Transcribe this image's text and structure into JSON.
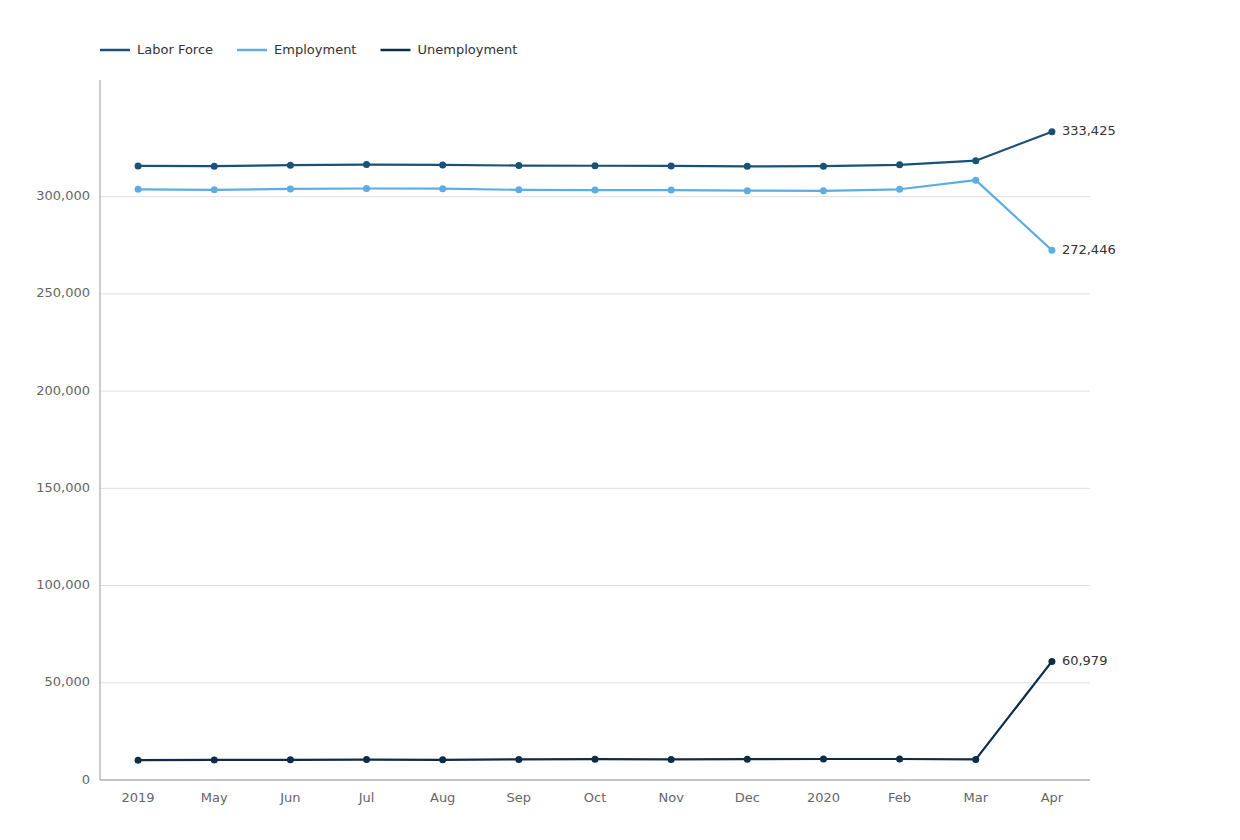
{
  "chart_data": {
    "type": "line",
    "categories": [
      "2019",
      "May",
      "Jun",
      "Jul",
      "Aug",
      "Sep",
      "Oct",
      "Nov",
      "Dec",
      "2020",
      "Feb",
      "Mar",
      "Apr"
    ],
    "series": [
      {
        "name": "Labor Force",
        "color": "#1a5276",
        "values": [
          315800,
          315700,
          316200,
          316500,
          316300,
          316000,
          315900,
          315800,
          315600,
          315700,
          316400,
          318500,
          333425
        ]
      },
      {
        "name": "Employment",
        "color": "#5dade2",
        "values": [
          303800,
          303500,
          304000,
          304200,
          304100,
          303500,
          303400,
          303400,
          303100,
          303000,
          303800,
          308500,
          272446
        ]
      },
      {
        "name": "Unemployment",
        "color": "#0d2d47",
        "values": [
          10200,
          10300,
          10400,
          10500,
          10400,
          10600,
          10700,
          10600,
          10700,
          10800,
          10800,
          10600,
          60979
        ]
      }
    ],
    "annotations": [
      {
        "text": "333,425",
        "x": "Apr",
        "y": 333425
      },
      {
        "text": "272,446",
        "x": "Apr",
        "y": 272446
      },
      {
        "text": "60,979",
        "x": "Apr",
        "y": 60979
      }
    ],
    "ylim": [
      0,
      360000
    ],
    "yticks": [
      0,
      {
        "value": 50000,
        "label": "50,000"
      },
      {
        "value": 100000,
        "label": "100,000"
      },
      {
        "value": 150000,
        "label": "150,000"
      },
      {
        "value": 200000,
        "label": "200,000"
      },
      {
        "value": 250000,
        "label": "250,000"
      },
      {
        "value": 300000,
        "label": "300,000"
      }
    ],
    "grid": true,
    "legend": "top",
    "marker": "circle"
  }
}
